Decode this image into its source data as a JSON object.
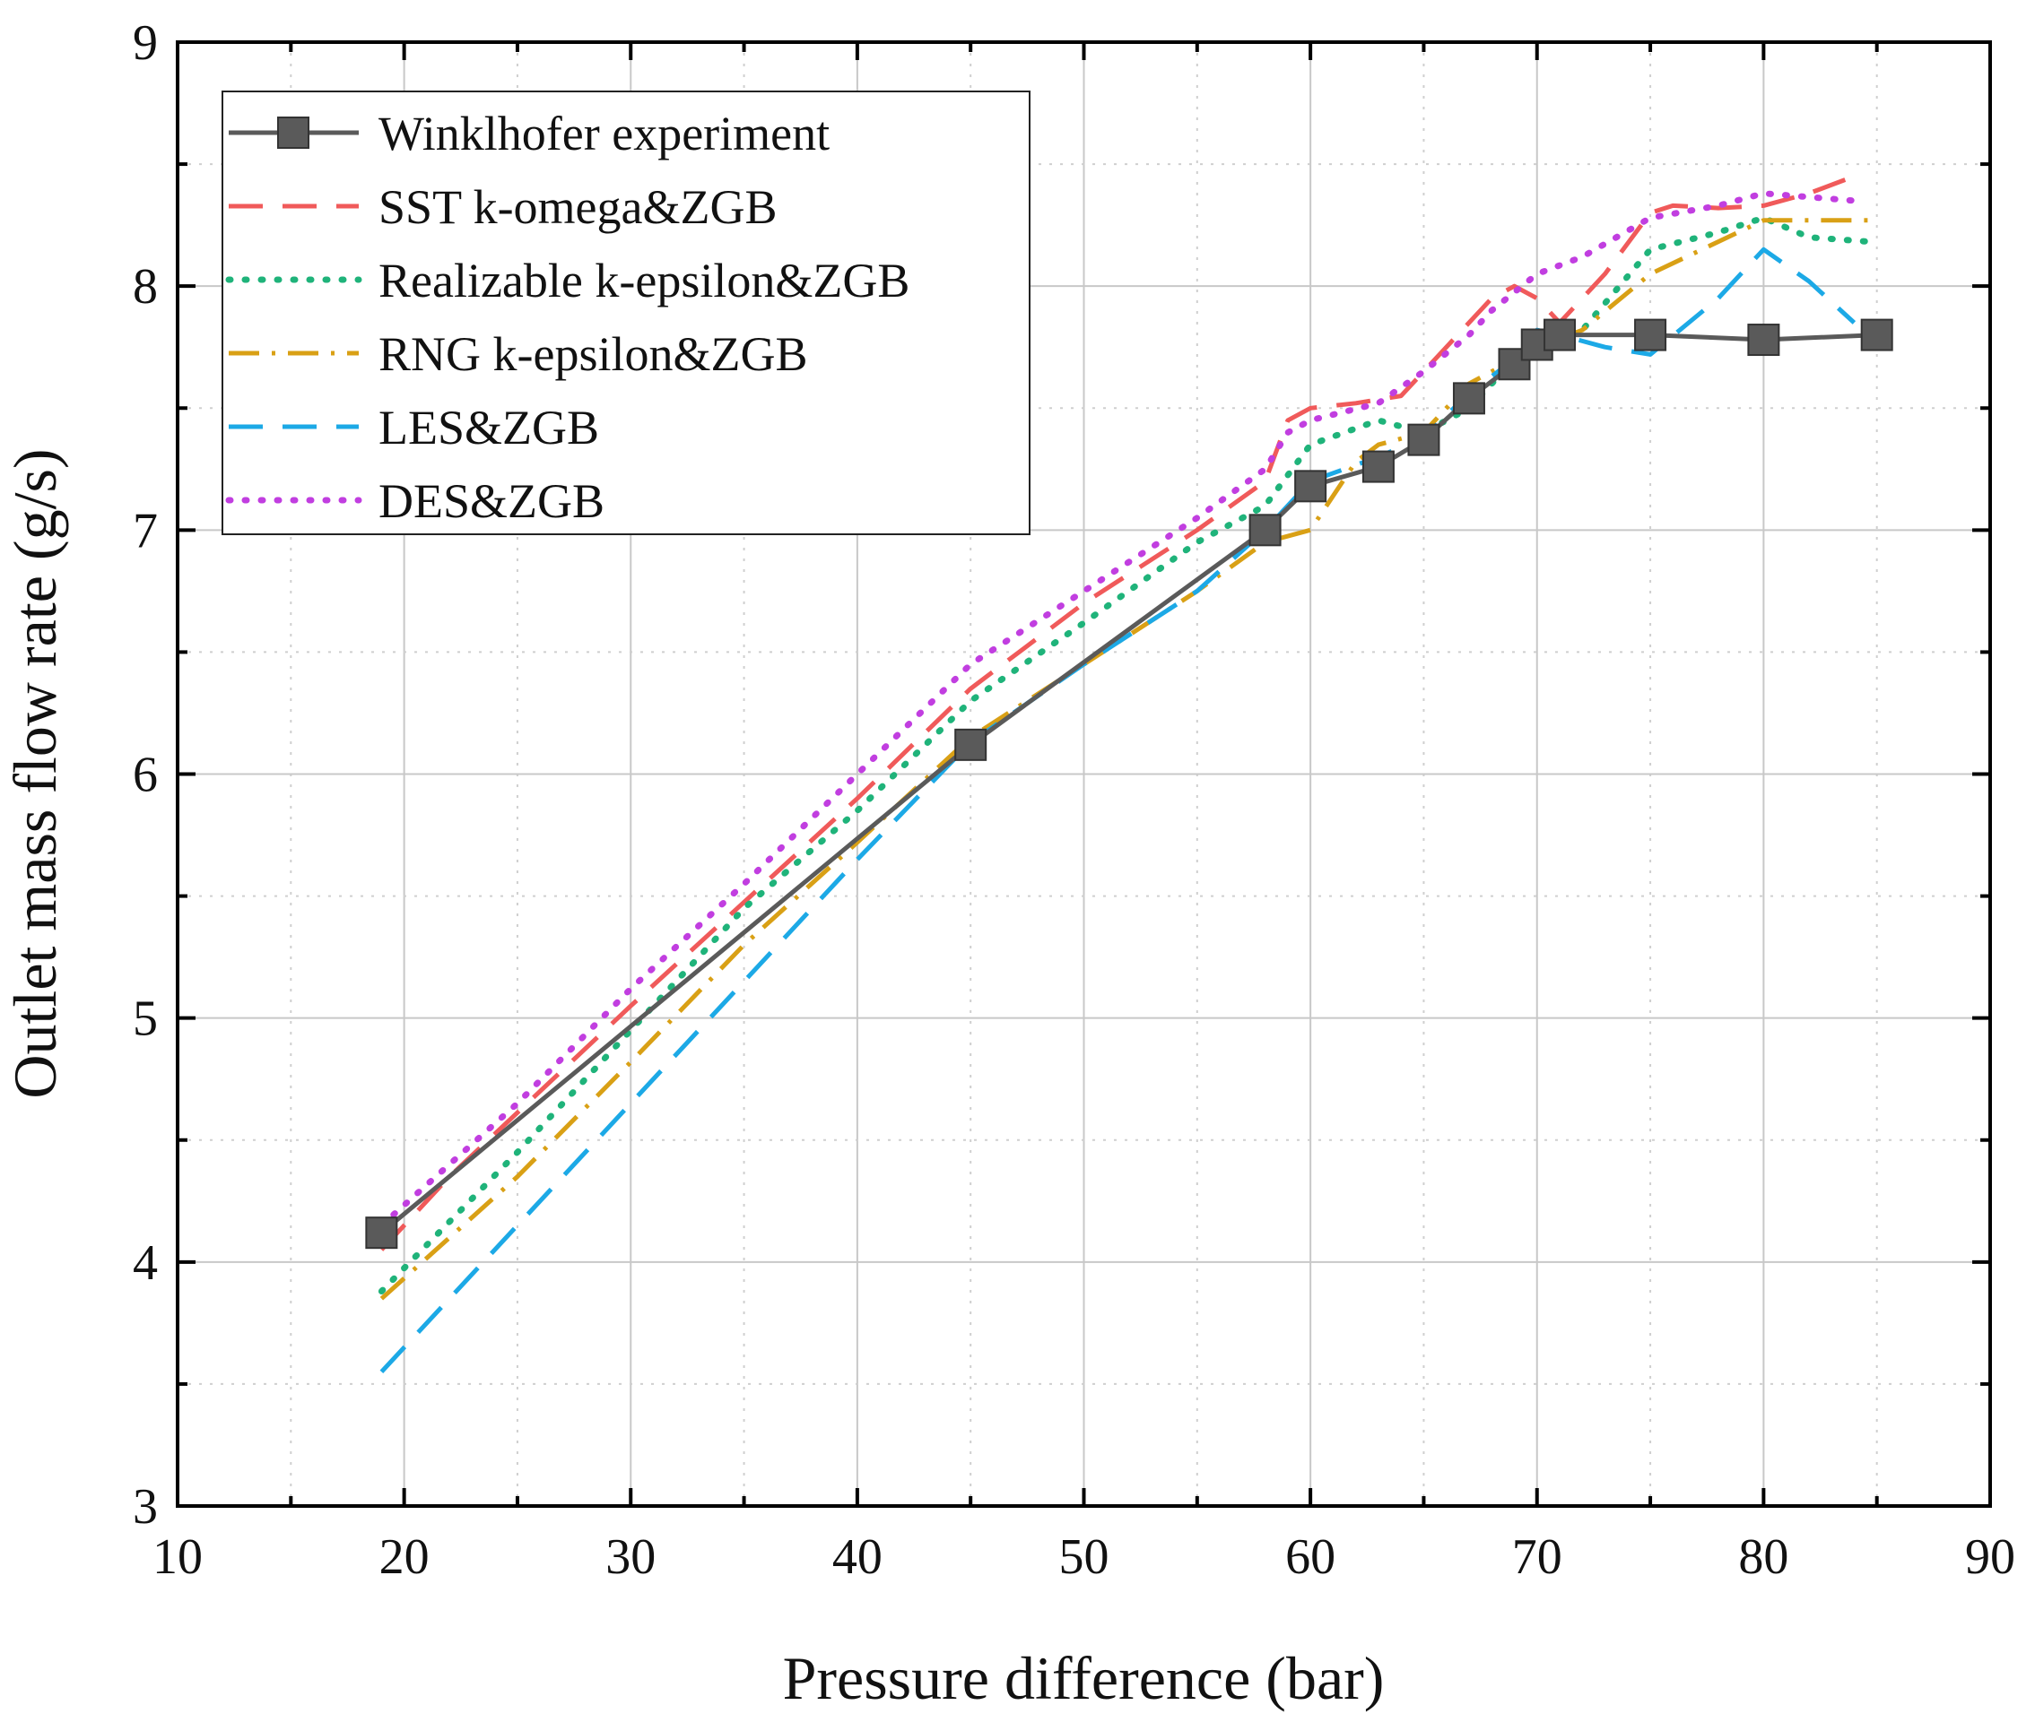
{
  "chart_data": {
    "type": "line",
    "title": "",
    "xlabel": "Pressure difference (bar)",
    "ylabel": "Outlet mass flow rate (g/s)",
    "xlim": [
      10,
      90
    ],
    "ylim": [
      3,
      9
    ],
    "xticks": [
      "10",
      "20",
      "30",
      "40",
      "50",
      "60",
      "70",
      "80",
      "90"
    ],
    "yticks": [
      "3",
      "4",
      "5",
      "6",
      "7",
      "8",
      "9"
    ],
    "grid": true,
    "legend_position": "top-left",
    "series": [
      {
        "name": "Winklhofer experiment",
        "color": "#5a5a5a",
        "style": "solid-square-markers",
        "x": [
          19,
          45,
          58,
          60,
          63,
          65,
          67,
          69,
          70,
          71,
          75,
          80,
          85
        ],
        "y": [
          4.12,
          6.12,
          7.0,
          7.18,
          7.26,
          7.37,
          7.54,
          7.68,
          7.76,
          7.8,
          7.8,
          7.78,
          7.8
        ]
      },
      {
        "name": "SST k-omega&ZGB",
        "color": "#f05a5a",
        "style": "dashed",
        "x": [
          19,
          22,
          30,
          40,
          45,
          50,
          55,
          58,
          59,
          60,
          62,
          64,
          66,
          68,
          69,
          70,
          71,
          73,
          75,
          76,
          78,
          80,
          82,
          84
        ],
        "y": [
          4.05,
          4.35,
          5.05,
          5.9,
          6.35,
          6.7,
          7.0,
          7.2,
          7.45,
          7.5,
          7.52,
          7.55,
          7.75,
          7.95,
          8.0,
          7.95,
          7.85,
          8.05,
          8.3,
          8.33,
          8.32,
          8.33,
          8.38,
          8.45
        ]
      },
      {
        "name": "Realizable k-epsilon&ZGB",
        "color": "#1fb37a",
        "style": "dotted",
        "x": [
          19,
          25,
          30,
          35,
          40,
          45,
          50,
          55,
          58,
          60,
          63,
          65,
          67,
          69,
          70,
          72,
          75,
          78,
          80,
          82,
          85
        ],
        "y": [
          3.88,
          4.45,
          4.95,
          5.45,
          5.85,
          6.3,
          6.62,
          6.95,
          7.1,
          7.35,
          7.45,
          7.4,
          7.5,
          7.7,
          7.78,
          7.82,
          8.15,
          8.22,
          8.28,
          8.2,
          8.18
        ]
      },
      {
        "name": "RNG k-epsilon&ZGB",
        "color": "#d9a015",
        "style": "dash-dot",
        "x": [
          19,
          25,
          30,
          35,
          40,
          45,
          50,
          55,
          58,
          60,
          62,
          63,
          65,
          67,
          69,
          70,
          72,
          75,
          80,
          85
        ],
        "y": [
          3.85,
          4.35,
          4.82,
          5.3,
          5.72,
          6.15,
          6.45,
          6.75,
          6.95,
          7.0,
          7.28,
          7.35,
          7.4,
          7.6,
          7.7,
          7.75,
          7.82,
          8.05,
          8.27,
          8.27
        ]
      },
      {
        "name": "LES&ZGB",
        "color": "#1ca9e6",
        "style": "dashed",
        "x": [
          19,
          25,
          30,
          35,
          40,
          45,
          50,
          55,
          58,
          60,
          63,
          65,
          67,
          69,
          70,
          71,
          73,
          75,
          78,
          80,
          82,
          84
        ],
        "y": [
          3.55,
          4.15,
          4.65,
          5.15,
          5.65,
          6.13,
          6.45,
          6.75,
          7.0,
          7.2,
          7.3,
          7.38,
          7.56,
          7.7,
          7.82,
          7.8,
          7.75,
          7.72,
          7.95,
          8.15,
          8.02,
          7.85
        ]
      },
      {
        "name": "DES&ZGB",
        "color": "#c13ee0",
        "style": "dotted",
        "x": [
          19,
          25,
          30,
          35,
          40,
          45,
          50,
          55,
          58,
          59,
          60,
          63,
          65,
          67,
          68,
          70,
          72,
          75,
          78,
          80,
          84
        ],
        "y": [
          4.15,
          4.65,
          5.12,
          5.55,
          6.0,
          6.45,
          6.75,
          7.05,
          7.25,
          7.4,
          7.45,
          7.52,
          7.65,
          7.8,
          7.9,
          8.05,
          8.12,
          8.28,
          8.33,
          8.38,
          8.35
        ]
      }
    ]
  }
}
